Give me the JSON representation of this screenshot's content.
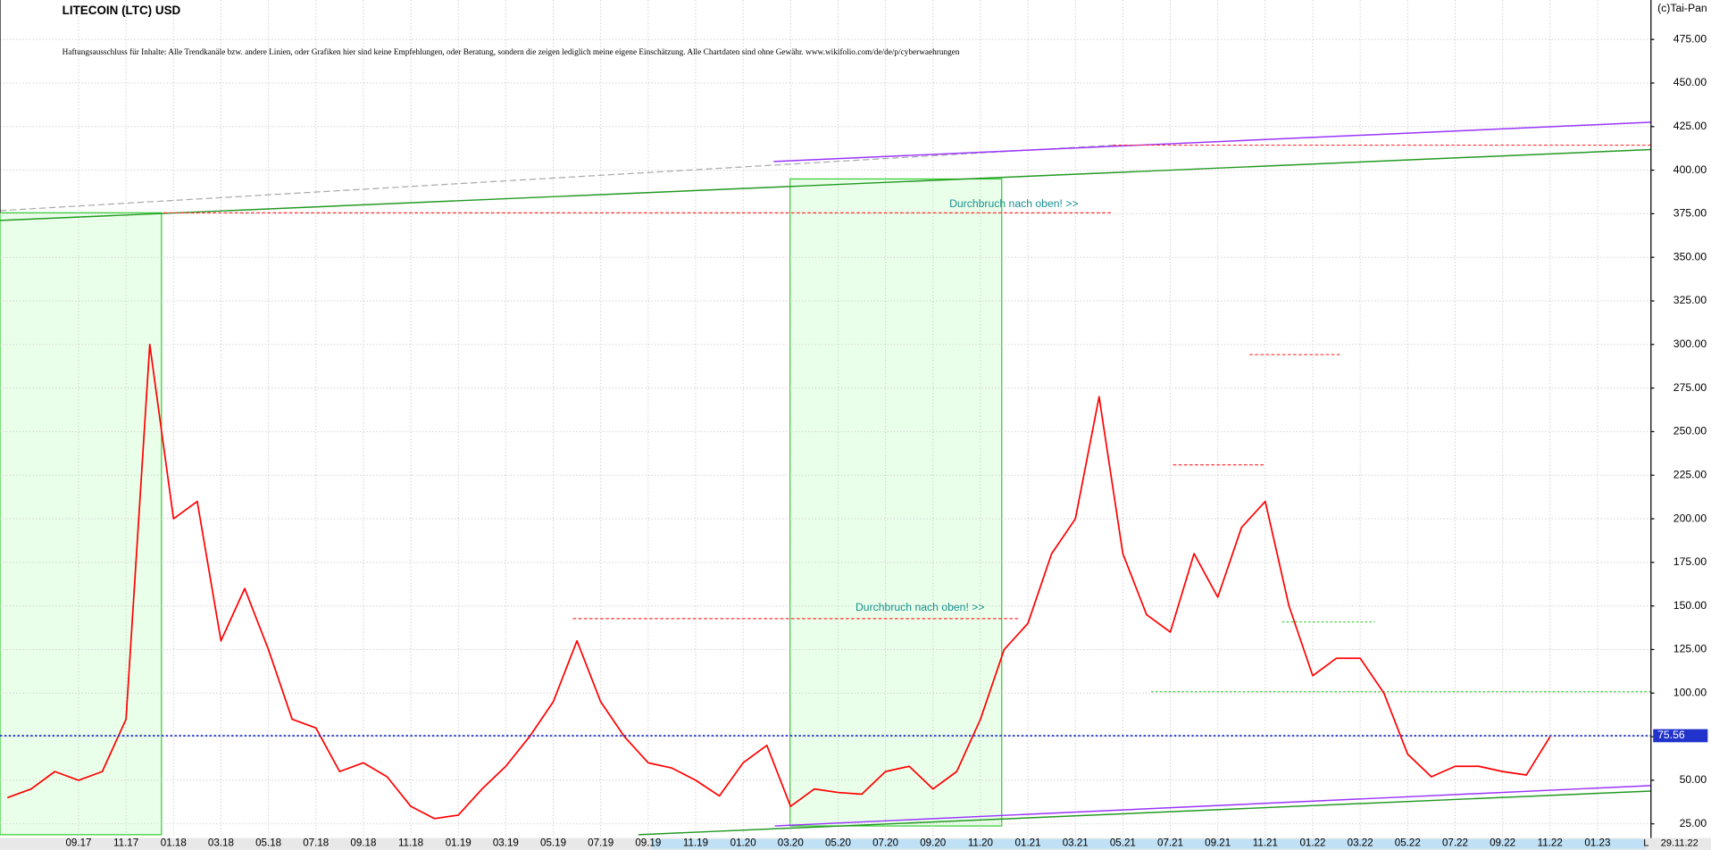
{
  "chart_data": {
    "type": "line",
    "title": "LITECOIN (LTC) USD",
    "subtitle": "Haftungsausschluss für Inhalte: Alle Trendkanäle bzw. andere Linien, oder Grafiken hier sind keine Empfehlungen, oder Beratung, sondern die zeigen lediglich meine eigene Einschätzung. Alle Chartdaten sind ohne Gewähr.  www.wikifolio.com/de/de/p/cyberwaehrungen",
    "source": "(c)Tai-Pan",
    "annotations": [
      "Durchbruch nach oben! >>",
      "Durchbruch nach oben! >>"
    ],
    "last_price": 75.56,
    "last_date": "29.11.22",
    "corner_label": "L",
    "color": "#ff0000",
    "grid": true,
    "categories": [
      null,
      null,
      null,
      "09.17",
      null,
      "11.17",
      null,
      "01.18",
      null,
      "03.18",
      null,
      "05.18",
      null,
      "07.18",
      null,
      "09.18",
      null,
      "11.18",
      null,
      "01.19",
      null,
      "03.19",
      null,
      "05.19",
      null,
      "07.19",
      null,
      "09.19",
      null,
      "11.19",
      null,
      "01.20",
      null,
      "03.20",
      null,
      "05.20",
      null,
      "07.20",
      null,
      "09.20",
      null,
      "11.20",
      null,
      "01.21",
      null,
      "03.21",
      null,
      "05.21",
      null,
      "07.21",
      null,
      "09.21",
      null,
      "11.21",
      null,
      "01.22",
      null,
      "03.22",
      null,
      "05.22",
      null,
      "07.22",
      null,
      "09.22",
      null,
      "11.22",
      null,
      "01.23"
    ],
    "values": [
      40,
      45,
      55,
      50,
      55,
      85,
      300,
      200,
      210,
      130,
      160,
      125,
      85,
      80,
      55,
      60,
      52,
      35,
      28,
      30,
      45,
      58,
      75,
      95,
      130,
      95,
      75,
      60,
      57,
      50,
      41,
      60,
      70,
      35,
      45,
      43,
      42,
      55,
      58,
      45,
      55,
      85,
      125,
      140,
      180,
      200,
      270,
      180,
      145,
      135,
      180,
      155,
      195,
      210,
      150,
      110,
      120,
      120,
      100,
      65,
      52,
      58,
      58,
      55,
      53,
      75,
      null,
      null
    ],
    "ylim": [
      16.9,
      497.6
    ],
    "yticks": [
      {
        "value": 25,
        "label": "25.00"
      },
      {
        "value": 50,
        "label": "50.00"
      },
      {
        "value": 75,
        "label": "75.00"
      },
      {
        "value": 100,
        "label": "100.00"
      },
      {
        "value": 125,
        "label": "125.00"
      },
      {
        "value": 150,
        "label": "150.00"
      },
      {
        "value": 175,
        "label": "175.00"
      },
      {
        "value": 200,
        "label": "200.00"
      },
      {
        "value": 225,
        "label": "225.00"
      },
      {
        "value": 250,
        "label": "250.00"
      },
      {
        "value": 275,
        "label": "275.00"
      },
      {
        "value": 300,
        "label": "300.00"
      },
      {
        "value": 325,
        "label": "325.00"
      },
      {
        "value": 350,
        "label": "350.00"
      },
      {
        "value": 375,
        "label": "375.00"
      },
      {
        "value": 400,
        "label": "400.00"
      },
      {
        "value": 425,
        "label": "425.00"
      },
      {
        "value": 450,
        "label": "450.00"
      },
      {
        "value": 475,
        "label": "475.00"
      }
    ]
  }
}
